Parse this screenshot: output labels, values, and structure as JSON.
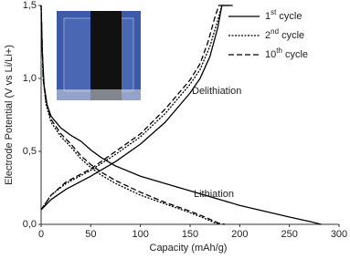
{
  "chart_data": {
    "type": "line",
    "x_label": "Capacity (mAh/g)",
    "y_label": "Electrode Potential (V vs Li/Li+)",
    "annotations": [
      "Delithiation",
      "Lithiation"
    ],
    "xlim": [
      0,
      300
    ],
    "xticks": [
      0,
      50,
      100,
      150,
      200,
      250,
      300
    ],
    "ylim": [
      0,
      1.5
    ],
    "yticks": [
      {
        "value": 0,
        "label": "0,0"
      },
      {
        "value": 0.5,
        "label": "0,5"
      },
      {
        "value": 1,
        "label": "1,0"
      },
      {
        "value": 1.5,
        "label": "1,5"
      }
    ],
    "legend": "top-right",
    "series": [
      {
        "name": "1st cycle",
        "color": "#000000",
        "dash": "solid",
        "x": [
          0,
          1,
          3,
          6,
          10,
          20,
          30,
          40,
          50,
          60,
          75,
          100,
          125,
          150,
          175,
          200,
          225,
          250,
          270,
          282,
          null,
          0,
          10,
          25,
          50,
          75,
          100,
          125,
          150,
          160,
          170,
          178,
          182,
          193
        ],
        "values": [
          1.5,
          1.2,
          0.95,
          0.82,
          0.74,
          0.66,
          0.61,
          0.57,
          0.51,
          0.46,
          0.4,
          0.33,
          0.28,
          0.23,
          0.18,
          0.13,
          0.09,
          0.05,
          0.02,
          0.0,
          null,
          0.1,
          0.17,
          0.24,
          0.33,
          0.43,
          0.55,
          0.7,
          0.9,
          1.0,
          1.15,
          1.35,
          1.5,
          1.5
        ]
      },
      {
        "name": "2nd cycle",
        "color": "#000000",
        "dash": "dotted",
        "x": [
          0,
          2,
          5,
          10,
          20,
          30,
          40,
          50,
          60,
          75,
          100,
          125,
          150,
          165,
          175,
          180,
          null,
          0,
          10,
          25,
          50,
          75,
          100,
          125,
          150,
          160,
          170,
          178,
          182,
          190
        ],
        "values": [
          1.5,
          1.0,
          0.82,
          0.7,
          0.6,
          0.53,
          0.45,
          0.39,
          0.34,
          0.28,
          0.2,
          0.14,
          0.08,
          0.04,
          0.01,
          0.0,
          null,
          0.1,
          0.2,
          0.28,
          0.37,
          0.48,
          0.6,
          0.76,
          0.96,
          1.06,
          1.22,
          1.4,
          1.5,
          1.5
        ]
      },
      {
        "name": "10th cycle",
        "color": "#000000",
        "dash": "dashed",
        "x": [
          0,
          2,
          5,
          10,
          20,
          30,
          40,
          50,
          60,
          75,
          100,
          125,
          150,
          165,
          178,
          185,
          null,
          0,
          10,
          25,
          50,
          75,
          100,
          125,
          150,
          160,
          168,
          175,
          179,
          187
        ],
        "values": [
          1.5,
          1.0,
          0.84,
          0.72,
          0.62,
          0.55,
          0.47,
          0.41,
          0.36,
          0.3,
          0.22,
          0.15,
          0.09,
          0.05,
          0.01,
          0.0,
          null,
          0.1,
          0.2,
          0.29,
          0.38,
          0.5,
          0.62,
          0.79,
          0.99,
          1.1,
          1.25,
          1.42,
          1.5,
          1.5
        ]
      }
    ]
  }
}
